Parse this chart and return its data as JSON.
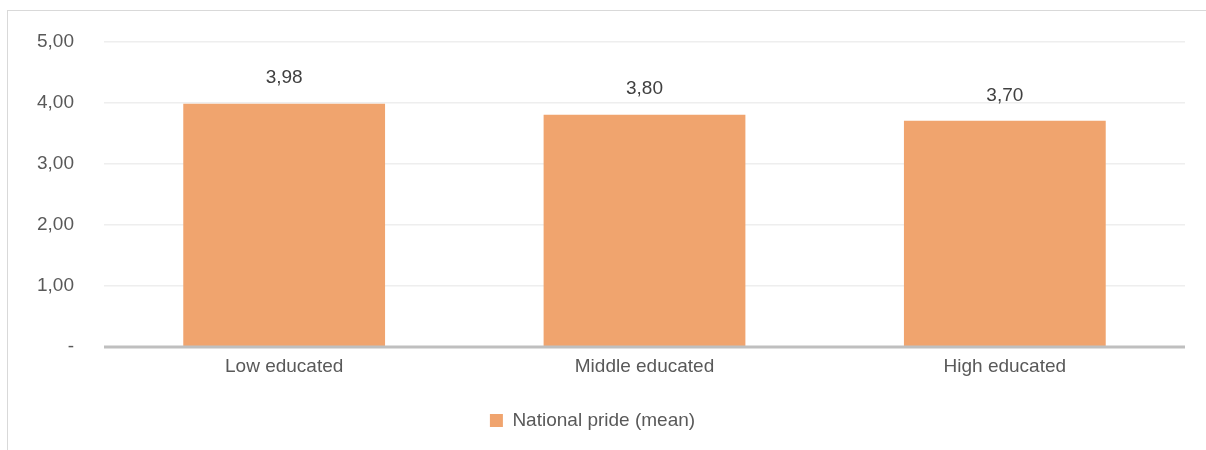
{
  "chart_data": {
    "type": "bar",
    "categories": [
      "Low educated",
      "Middle educated",
      "High educated"
    ],
    "series": [
      {
        "name": "National pride (mean)",
        "color": "#f0a46e",
        "values": [
          3.98,
          3.8,
          3.7
        ],
        "value_labels": [
          "3,98",
          "3,80",
          "3,70"
        ]
      }
    ],
    "ylim": [
      0,
      5
    ],
    "yticks": [
      {
        "value": 0,
        "label": "-"
      },
      {
        "value": 1,
        "label": "1,00"
      },
      {
        "value": 2,
        "label": "2,00"
      },
      {
        "value": 3,
        "label": "3,00"
      },
      {
        "value": 4,
        "label": "4,00"
      },
      {
        "value": 5,
        "label": "5,00"
      }
    ],
    "grid": "y",
    "legend": "bottom"
  }
}
